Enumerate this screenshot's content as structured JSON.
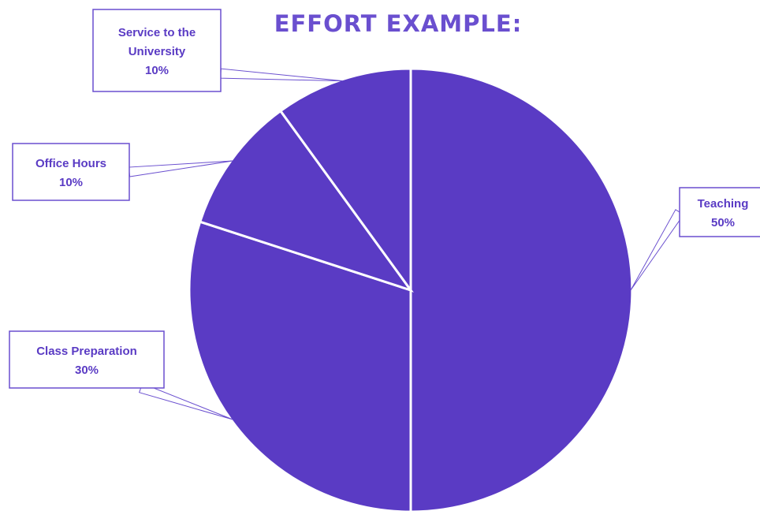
{
  "chart_data": {
    "type": "pie",
    "title": "EFFORT EXAMPLE:",
    "slices": [
      {
        "label": "Teaching",
        "percent_label": "50%",
        "value": 50
      },
      {
        "label": "Class Preparation",
        "percent_label": "30%",
        "value": 30
      },
      {
        "label": "Office Hours",
        "percent_label": "10%",
        "value": 10
      },
      {
        "label": "Service to the University",
        "percent_label": "10%",
        "value": 10
      }
    ],
    "start_angle": "12 o'clock",
    "direction": "clockwise",
    "legend": "none",
    "data_labels": "callout boxes"
  },
  "colors": {
    "slice_fill": "#5a3bc4",
    "slice_border": "#ffffff",
    "title": "#6a4fcf",
    "label_text": "#5a3bc4",
    "label_border": "#6a4fcf",
    "background": "#ffffff"
  }
}
